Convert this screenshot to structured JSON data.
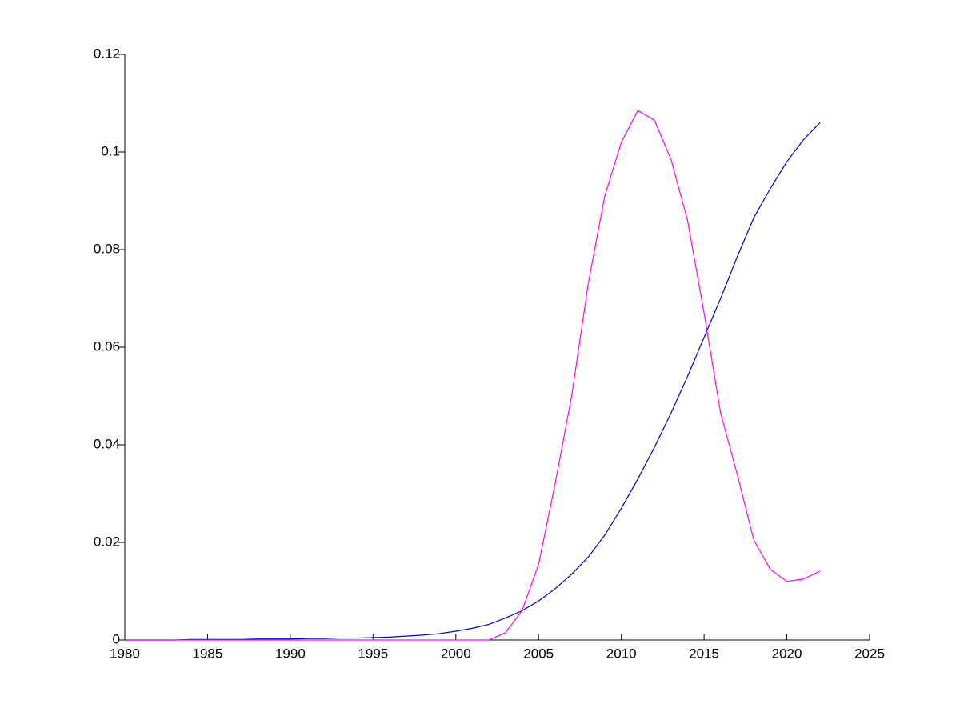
{
  "chart_data": {
    "type": "line",
    "x": [
      1980,
      1981,
      1982,
      1983,
      1984,
      1985,
      1986,
      1987,
      1988,
      1989,
      1990,
      1991,
      1992,
      1993,
      1994,
      1995,
      1996,
      1997,
      1998,
      1999,
      2000,
      2001,
      2002,
      2003,
      2004,
      2005,
      2006,
      2007,
      2008,
      2009,
      2010,
      2011,
      2012,
      2013,
      2014,
      2015,
      2016,
      2017,
      2018,
      2019,
      2020,
      2021,
      2022
    ],
    "series": [
      {
        "color": "#0000cc",
        "values": [
          0,
          0,
          0,
          0,
          0.0001,
          0.0001,
          0.0001,
          0.0001,
          0.0002,
          0.0002,
          0.0002,
          0.0003,
          0.0003,
          0.0004,
          0.0004,
          0.0005,
          0.0006,
          0.0008,
          0.001,
          0.0013,
          0.0018,
          0.0024,
          0.0032,
          0.0045,
          0.006,
          0.008,
          0.0105,
          0.0135,
          0.017,
          0.0215,
          0.027,
          0.033,
          0.0395,
          0.0465,
          0.054,
          0.062,
          0.07,
          0.0785,
          0.0865,
          0.0925,
          0.098,
          0.1025,
          0.106
        ]
      },
      {
        "color": "#ff00ff",
        "values": [
          0,
          0,
          0,
          0,
          0,
          0,
          0,
          0,
          0,
          0,
          0,
          0,
          0,
          0,
          0,
          0,
          0,
          0,
          0,
          0,
          0,
          0,
          0,
          0.0015,
          0.006,
          0.0155,
          0.032,
          0.05,
          0.073,
          0.091,
          0.102,
          0.1085,
          0.1065,
          0.0985,
          0.086,
          0.067,
          0.0465,
          0.034,
          0.0205,
          0.0145,
          0.012,
          0.0125,
          0.0141
        ]
      }
    ],
    "xlim": [
      1980,
      2025
    ],
    "xticks": [
      1980,
      1985,
      1990,
      1995,
      2000,
      2005,
      2010,
      2015,
      2020,
      2025
    ],
    "ylim": [
      0,
      0.12
    ],
    "yticks": [
      0,
      0.02,
      0.04,
      0.06,
      0.08,
      0.1,
      0.12
    ]
  }
}
